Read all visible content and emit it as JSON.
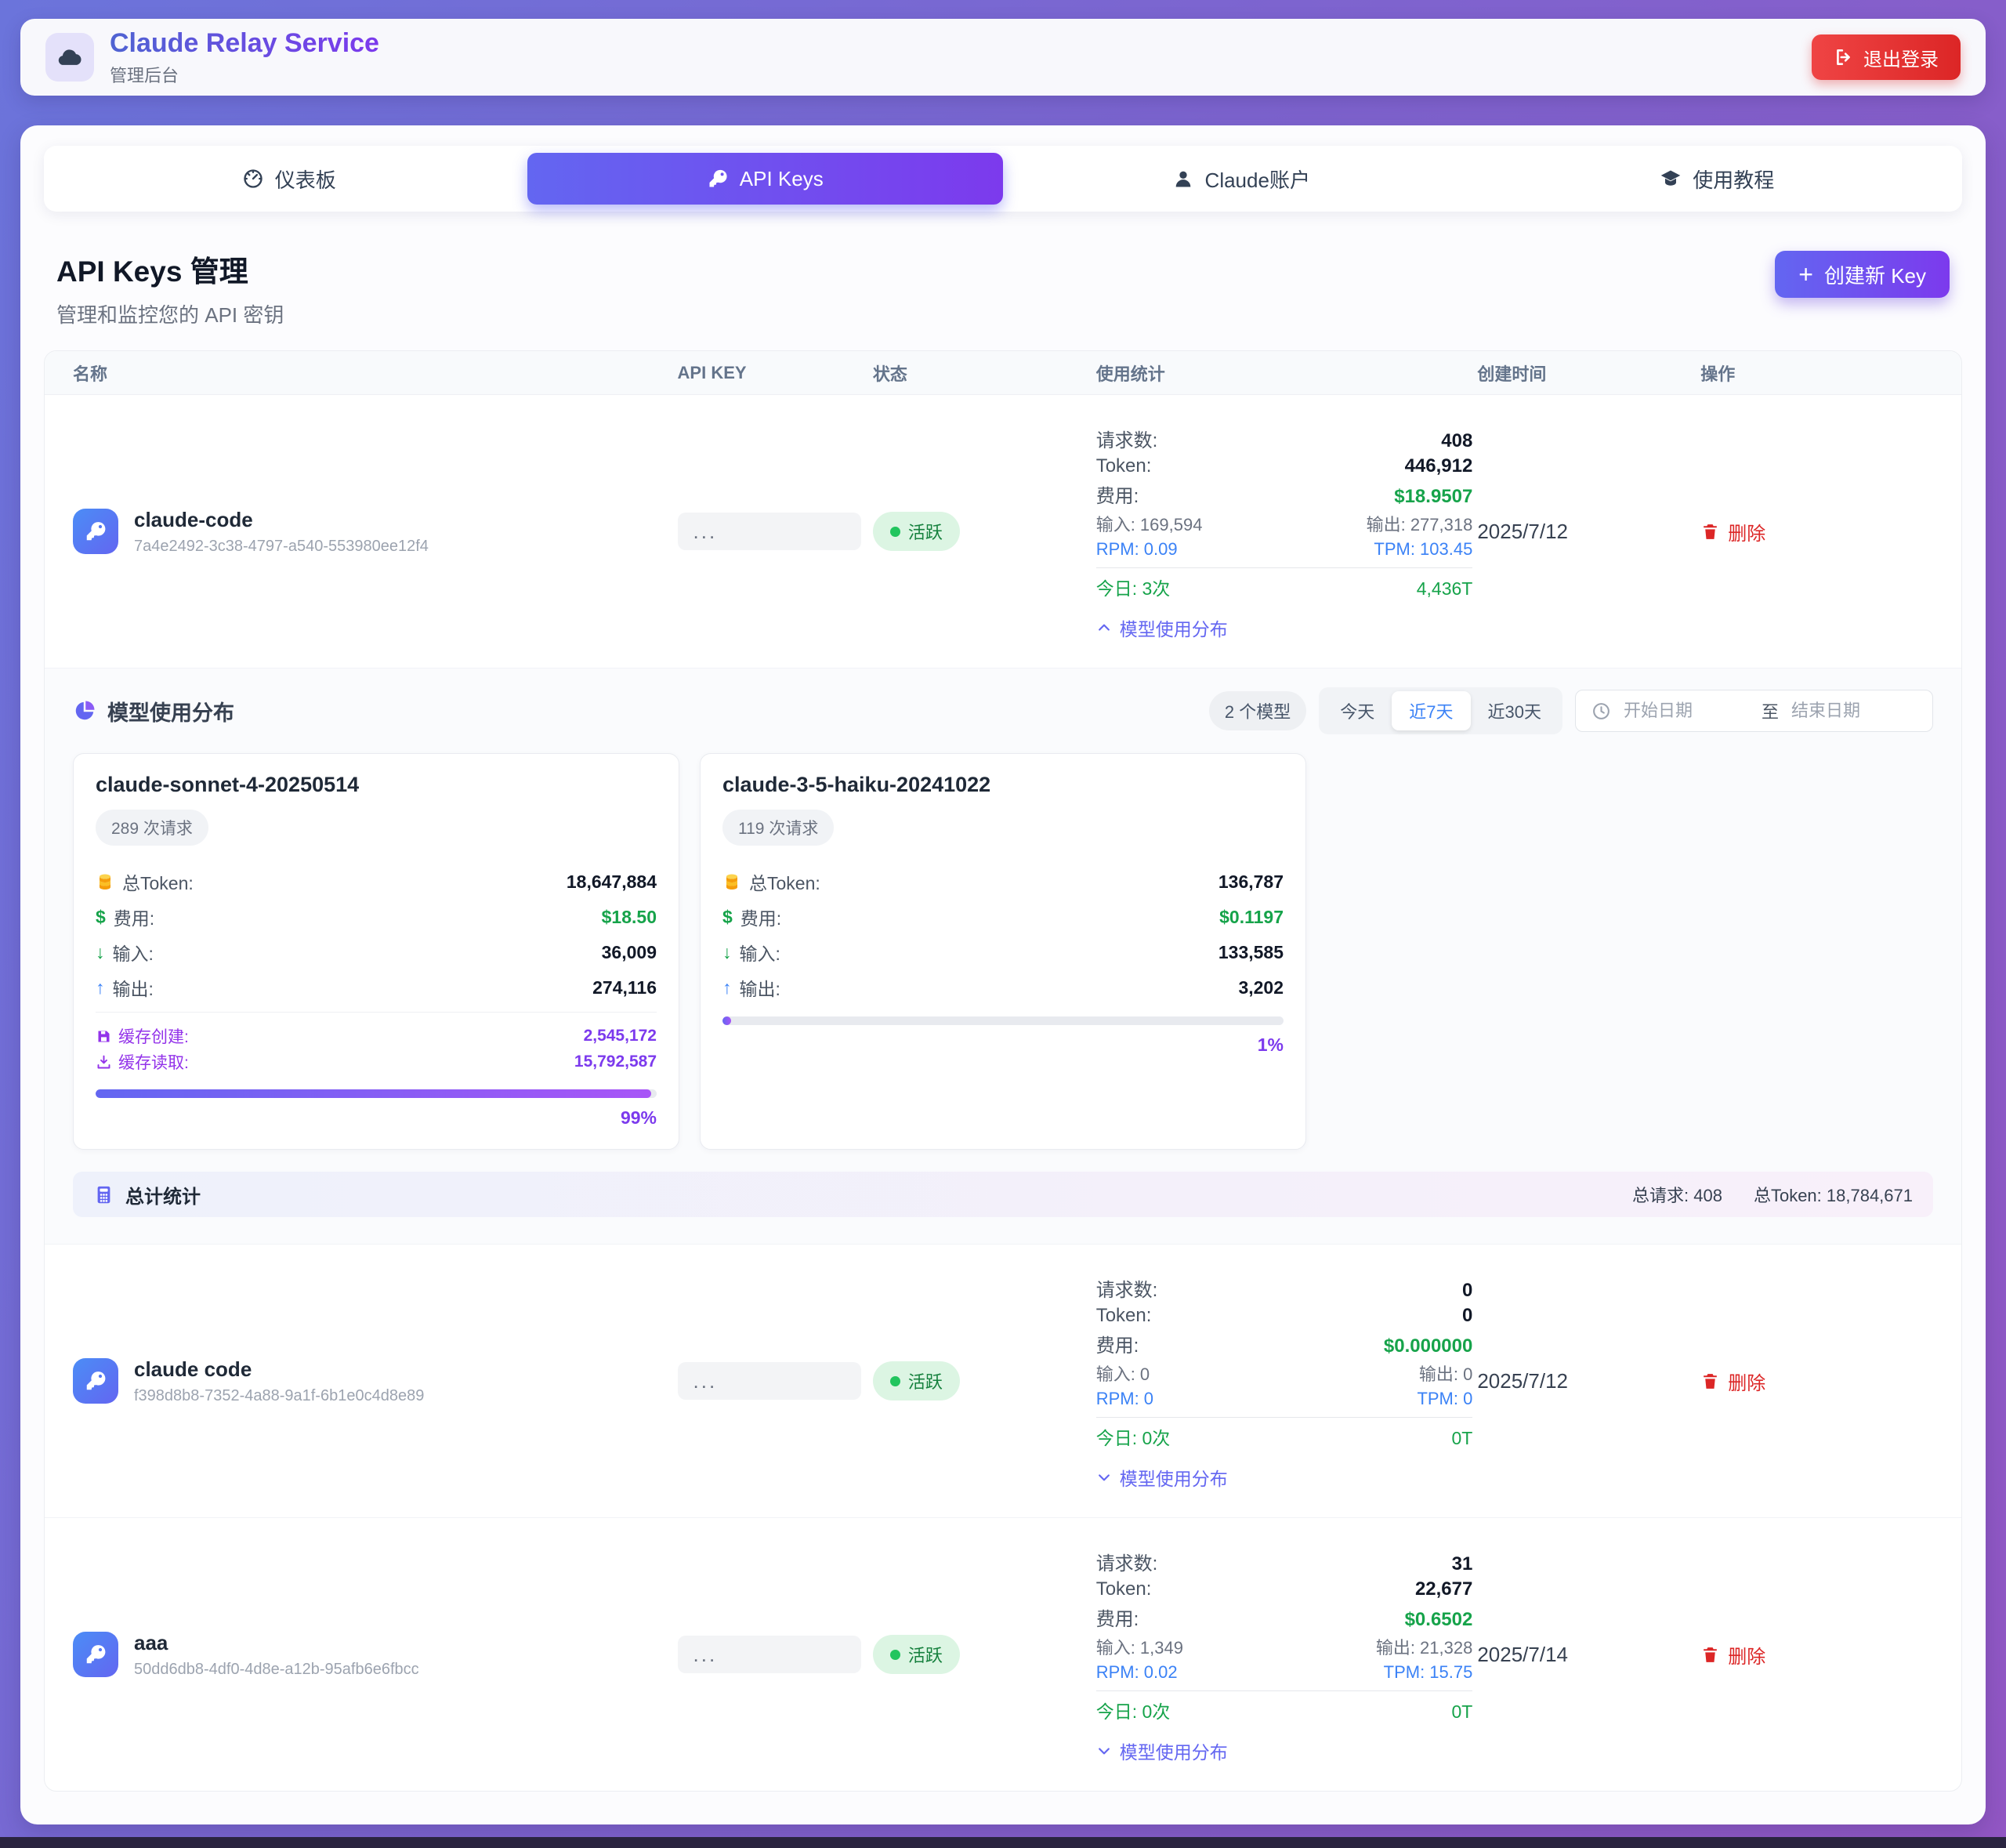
{
  "colors": {
    "accent_gradient_start": "#6366f1",
    "accent_gradient_end": "#7c3aed",
    "danger": "#dc2626",
    "success": "#16a34a",
    "info_blue": "#3b82f6",
    "cache_purple": "#9333ea"
  },
  "header": {
    "title": "Claude Relay Service",
    "subtitle": "管理后台",
    "logout": "退出登录"
  },
  "tabs": [
    {
      "label": "仪表板"
    },
    {
      "label": "API Keys"
    },
    {
      "label": "Claude账户"
    },
    {
      "label": "使用教程"
    }
  ],
  "page": {
    "title": "API Keys 管理",
    "subtitle": "管理和监控您的 API 密钥",
    "create_button": "创建新 Key"
  },
  "icons": {
    "plus": "+",
    "dollar": "$",
    "down_arrow": "↓",
    "up_arrow": "↑"
  },
  "table": {
    "headers": {
      "name": "名称",
      "api_key": "API KEY",
      "status": "状态",
      "usage": "使用统计",
      "created": "创建时间",
      "actions": "操作"
    }
  },
  "labels": {
    "requests": "请求数:",
    "token": "Token:",
    "fee": "费用:",
    "model_dist": "模型使用分布",
    "delete": "删除",
    "masked_key": "...",
    "total_token": "总Token:",
    "input": "输入:",
    "output": "输出:",
    "cache_create": "缓存创建:",
    "cache_read": "缓存读取:"
  },
  "rows": [
    {
      "name": "claude-code",
      "id": "7a4e2492-3c38-4797-a540-553980ee12f4",
      "status": "活跃",
      "requests": "408",
      "token": "446,912",
      "fee": "$18.9507",
      "input": "输入: 169,594",
      "output": "输出: 277,318",
      "rpm": "RPM: 0.09",
      "tpm": "TPM: 103.45",
      "today": "今日: 3次",
      "today_tokens": "4,436T",
      "created": "2025/7/12"
    },
    {
      "name": "claude code",
      "id": "f398d8b8-7352-4a88-9a1f-6b1e0c4d8e89",
      "status": "活跃",
      "requests": "0",
      "token": "0",
      "fee": "$0.000000",
      "input": "输入: 0",
      "output": "输出: 0",
      "rpm": "RPM: 0",
      "tpm": "TPM: 0",
      "today": "今日: 0次",
      "today_tokens": "0T",
      "created": "2025/7/12"
    },
    {
      "name": "aaa",
      "id": "50dd6db8-4df0-4d8e-a12b-95afb6e6fbcc",
      "status": "活跃",
      "requests": "31",
      "token": "22,677",
      "fee": "$0.6502",
      "input": "输入: 1,349",
      "output": "输出: 21,328",
      "rpm": "RPM: 0.02",
      "tpm": "TPM: 15.75",
      "today": "今日: 0次",
      "today_tokens": "0T",
      "created": "2025/7/14"
    }
  ],
  "distribution": {
    "title": "模型使用分布",
    "model_count_badge": "2 个模型",
    "filters": {
      "today": "今天",
      "last7": "近7天",
      "last30": "近30天",
      "active": "近7天"
    },
    "date_start_placeholder": "开始日期",
    "date_separator": "至",
    "date_end_placeholder": "结束日期",
    "models": [
      {
        "name": "claude-sonnet-4-20250514",
        "requests_badge": "289 次请求",
        "total_token": "18,647,884",
        "fee": "$18.50",
        "input": "36,009",
        "output": "274,116",
        "cache_create": "2,545,172",
        "cache_read": "15,792,587",
        "percent": 99,
        "percent_label": "99%"
      },
      {
        "name": "claude-3-5-haiku-20241022",
        "requests_badge": "119 次请求",
        "total_token": "136,787",
        "fee": "$0.1197",
        "input": "133,585",
        "output": "3,202",
        "percent": 1,
        "percent_label": "1%"
      }
    ],
    "totals": {
      "title": "总计统计",
      "requests": "总请求: 408",
      "tokens": "总Token: 18,784,671"
    }
  }
}
